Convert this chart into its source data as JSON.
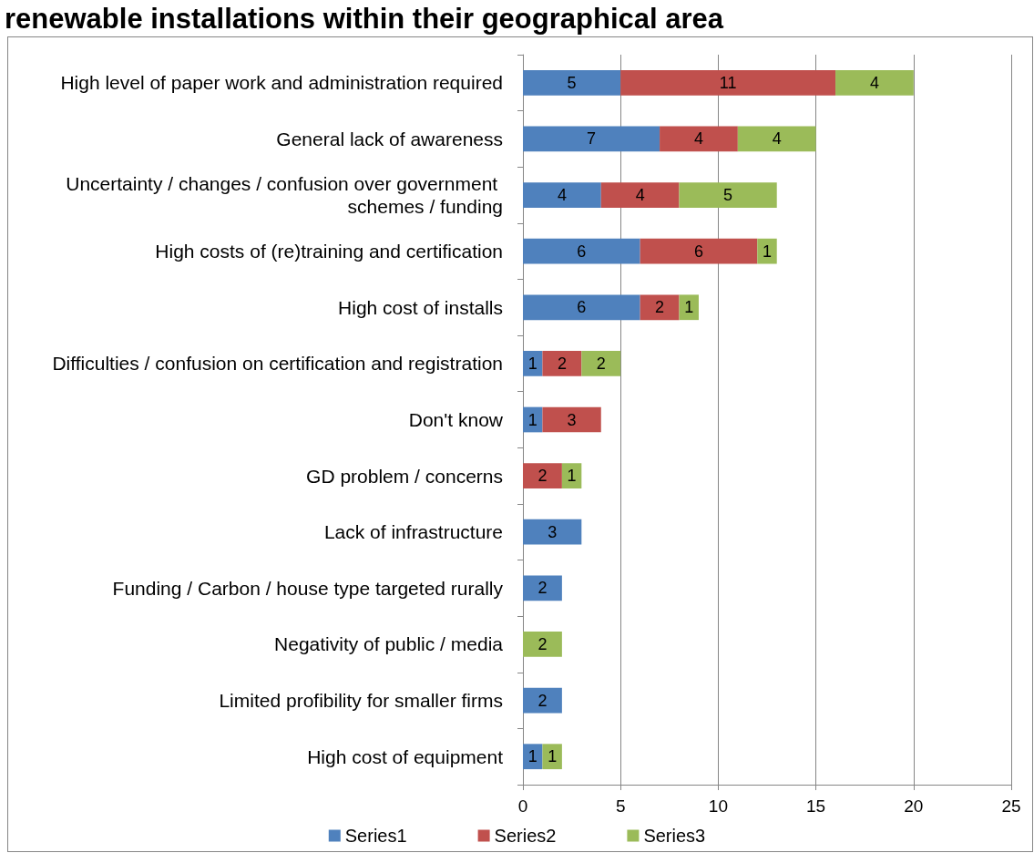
{
  "chart_data": {
    "type": "bar",
    "orientation": "horizontal",
    "stacked": true,
    "title": "renewable installations within their geographical area",
    "categories": [
      "High level of paper work and administration required",
      "General lack of awareness",
      "Uncertainty / changes / confusion over government schemes / funding",
      "High costs of (re)training and certification",
      "High cost of installs",
      "Difficulties / confusion on certification and registration",
      "Don't know",
      "GD problem / concerns",
      "Lack of infrastructure",
      "Funding / Carbon / house type targeted rurally",
      "Negativity of public / media",
      "Limited profibility for smaller firms",
      "High cost of equipment"
    ],
    "series": [
      {
        "name": "Series1",
        "color": "#4f81bd",
        "values": [
          5,
          7,
          4,
          6,
          6,
          1,
          1,
          null,
          3,
          2,
          null,
          2,
          1
        ]
      },
      {
        "name": "Series2",
        "color": "#c0504d",
        "values": [
          11,
          4,
          4,
          6,
          2,
          2,
          3,
          2,
          null,
          null,
          null,
          null,
          null
        ]
      },
      {
        "name": "Series3",
        "color": "#9bbb59",
        "values": [
          4,
          4,
          5,
          1,
          1,
          2,
          null,
          1,
          null,
          null,
          2,
          null,
          1
        ]
      }
    ],
    "xlim": [
      0,
      25
    ],
    "xticks": [
      0,
      5,
      10,
      15,
      20,
      25
    ],
    "grid": "x",
    "legend": "bottom",
    "data_labels": true
  }
}
